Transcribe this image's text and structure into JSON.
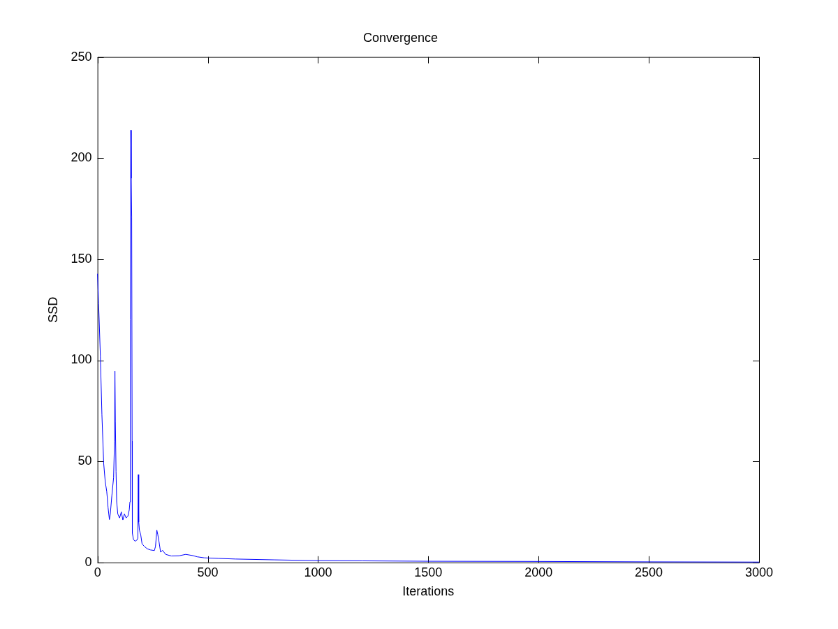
{
  "chart_data": {
    "type": "line",
    "title": "Convergence",
    "xlabel": "Iterations",
    "ylabel": "SSD",
    "xlim": [
      0,
      3000
    ],
    "ylim": [
      0,
      250
    ],
    "xticks": [
      0,
      500,
      1000,
      1500,
      2000,
      2500,
      3000
    ],
    "yticks": [
      0,
      50,
      100,
      150,
      200,
      250
    ],
    "grid": false,
    "legend": false,
    "marker": "none",
    "line_style": "solid",
    "series": [
      {
        "color": "#0000ff",
        "x": [
          0,
          5,
          13,
          20,
          28,
          35,
          42,
          48,
          54,
          58,
          65,
          73,
          77,
          79,
          81,
          84,
          87,
          92,
          100,
          108,
          115,
          122,
          130,
          138,
          144,
          147,
          149,
          151,
          153,
          155,
          157,
          158,
          163,
          170,
          178,
          183,
          185,
          187,
          190,
          196,
          202,
          212,
          225,
          240,
          258,
          263,
          269,
          273,
          279,
          286,
          295,
          309,
          335,
          370,
          400,
          432,
          452,
          484,
          550,
          626,
          800,
          1000,
          1200,
          1500,
          2000,
          2500,
          3000
        ],
        "values": [
          142.8,
          128,
          102,
          73,
          49,
          40,
          35,
          27,
          21.2,
          24,
          33,
          42,
          60,
          94.6,
          70,
          45,
          30,
          24,
          22,
          25,
          21,
          24,
          22,
          23,
          26,
          30,
          120,
          213.8,
          190,
          171,
          60,
          14.5,
          11.4,
          10.5,
          11,
          12,
          43.5,
          20,
          16,
          13.7,
          9.2,
          8,
          6.8,
          6.2,
          5.9,
          8,
          16,
          14,
          10.2,
          5.1,
          6,
          4,
          3.2,
          3.3,
          4,
          3.4,
          2.8,
          2.3,
          2,
          1.7,
          1.3,
          0.9,
          0.8,
          0.6,
          0.5,
          0.3,
          0.2
        ]
      }
    ]
  }
}
